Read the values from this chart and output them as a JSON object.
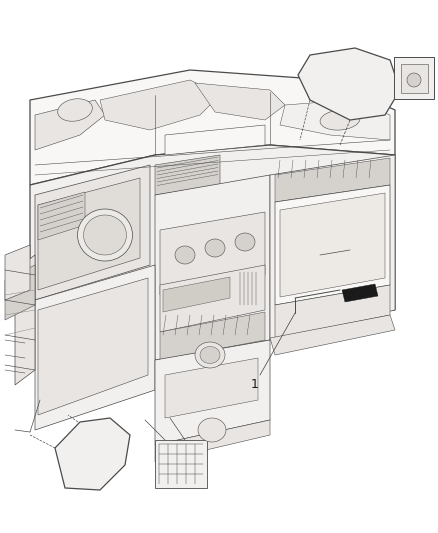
{
  "background_color": "#ffffff",
  "line_color": "#4a4a4a",
  "light_fill": "#f2f0ee",
  "medium_fill": "#e8e5e2",
  "dark_fill": "#d5d2ce",
  "very_light": "#f8f7f6",
  "label_1_text": "1",
  "fig_width": 4.38,
  "fig_height": 5.33,
  "dpi": 100,
  "lw": 0.55,
  "lw_thick": 0.9
}
